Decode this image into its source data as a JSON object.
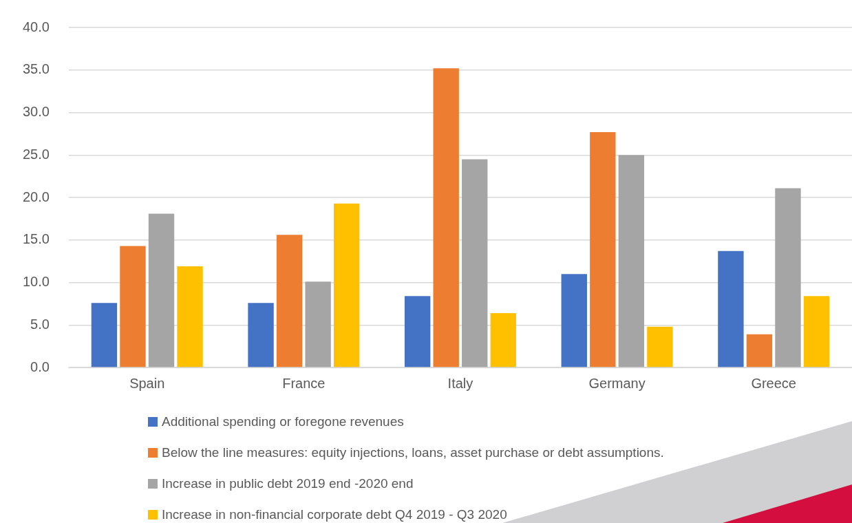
{
  "chart_data": {
    "type": "bar",
    "categories": [
      "Spain",
      "France",
      "Italy",
      "Germany",
      "Greece"
    ],
    "series": [
      {
        "name": "Additional spending or foregone revenues",
        "color": "#4472c4",
        "values": [
          7.6,
          7.6,
          8.4,
          11.0,
          13.7
        ]
      },
      {
        "name": "Below the line measures: equity injections, loans, asset purchase or debt assumptions.",
        "color": "#ed7d31",
        "values": [
          14.3,
          15.6,
          35.2,
          27.7,
          3.9
        ]
      },
      {
        "name": "Increase in public debt 2019 end -2020 end",
        "color": "#a5a5a5",
        "values": [
          18.1,
          10.1,
          24.5,
          25.0,
          21.1
        ]
      },
      {
        "name": "Increase in non-financial corporate debt Q4 2019 - Q3 2020",
        "color": "#ffc000",
        "values": [
          11.9,
          19.3,
          6.4,
          4.8,
          8.4
        ]
      }
    ],
    "ylim": [
      0,
      40
    ],
    "yticks": [
      {
        "value": 0,
        "label": "0.0"
      },
      {
        "value": 5,
        "label": "5.0"
      },
      {
        "value": 10,
        "label": "10.0"
      },
      {
        "value": 15,
        "label": "15.0"
      },
      {
        "value": 20,
        "label": "20.0"
      },
      {
        "value": 25,
        "label": "25.0"
      },
      {
        "value": 30,
        "label": "30.0"
      },
      {
        "value": 35,
        "label": "35.0"
      },
      {
        "value": 40,
        "label": "40.0"
      }
    ],
    "grid": "y",
    "legend": "bottom"
  }
}
